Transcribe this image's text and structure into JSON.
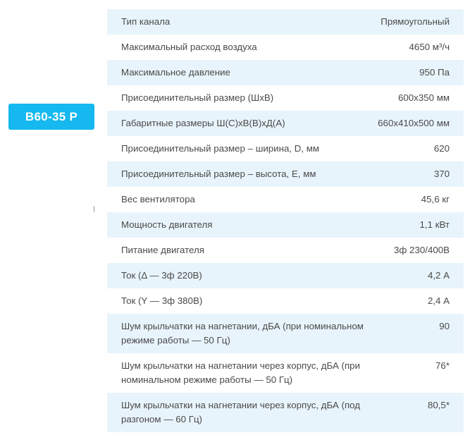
{
  "model_button": "В60-35 Р",
  "specs": [
    {
      "label": "Тип канала",
      "value": "Прямоугольный"
    },
    {
      "label": "Максимальный расход воздуха",
      "value": "4650 м³/ч"
    },
    {
      "label": "Максимальное давление",
      "value": "950 Па"
    },
    {
      "label": "Присоединительный размер (ШхВ)",
      "value": "600х350 мм"
    },
    {
      "label": "Габаритные размеры Ш(С)хВ(В)хД(А)",
      "value": "660х410х500 мм"
    },
    {
      "label": "Присоединительный размер – ширина, D, мм",
      "value": "620"
    },
    {
      "label": "Присоединительный размер – высота, E, мм",
      "value": "370"
    },
    {
      "label": "Вес вентилятора",
      "value": "45,6 кг"
    },
    {
      "label": "Мощность двигателя",
      "value": "1,1 кВт"
    },
    {
      "label": "Питание двигателя",
      "value": "3ф 230/400В"
    },
    {
      "label": "Ток (Δ — 3ф 220В)",
      "value": "4,2 А"
    },
    {
      "label": "Ток (Y — 3ф 380В)",
      "value": "2,4 А"
    },
    {
      "label": "Шум крыльчатки на нагнетании, дБА (при номинальном режиме работы — 50 Гц)",
      "value": "90"
    },
    {
      "label": "Шум крыльчатки на нагнетании через корпус, дБА (при номинальном режиме работы — 50 Гц)",
      "value": "76*"
    },
    {
      "label": "Шум крыльчатки на нагнетании через корпус, дБА (под разгоном — 60 Гц)",
      "value": "80,5*"
    }
  ]
}
